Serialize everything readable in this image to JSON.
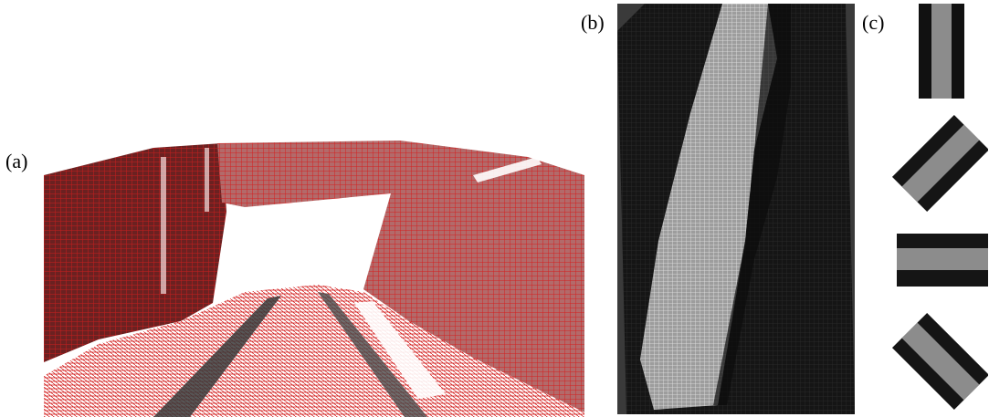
{
  "labels": {
    "a": "(a)",
    "b": "(b)",
    "c": "(c)"
  },
  "colors": {
    "background": "#ffffff",
    "mesh_red": "#c81e1e",
    "wall_dark": "#5a1a1a",
    "wall_mid": "#8a3a3a",
    "topdown_bg": "#1b1b1b",
    "topdown_mesh": "#d8d8d8",
    "kernel_black": "#111111",
    "kernel_gray": "#8c8c8c"
  },
  "panels": {
    "a": {
      "name": "tunnel-point-cloud-mesh"
    },
    "b": {
      "name": "top-down-grid-mesh"
    },
    "c": {
      "name": "oriented-kernels",
      "orientations_deg": [
        0,
        45,
        90,
        -45
      ]
    }
  }
}
